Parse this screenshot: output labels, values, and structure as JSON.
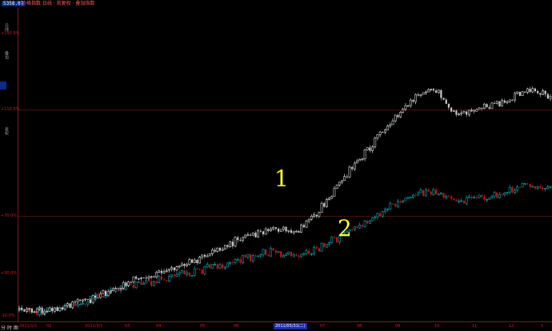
{
  "header": {
    "price_box": "5358.07",
    "info_text": "价格指数 日线 · 前复权 · 叠加指数",
    "colors": {
      "up": "#ffffff",
      "down": "#c8c8c8",
      "series2_up": "#00c8d0",
      "series2_down": "#cc1111"
    }
  },
  "left_axis": {
    "ticks": [
      "+150.0%",
      "+110.0%",
      "+70.0%",
      "+30.0%",
      "-10.0%"
    ],
    "vertical_labels": [
      "日线",
      "叠加",
      "复权"
    ]
  },
  "bottom": {
    "label": "分 时 图",
    "x_labels": [
      "2011/1/1",
      "02",
      "2011/3/1",
      "03",
      "04",
      "05",
      "06",
      "07",
      "08",
      "09",
      "10",
      "11",
      "12",
      "1"
    ],
    "date_box": "2011/05/31(二)"
  },
  "annotations": {
    "line1": "1",
    "line2": "2"
  },
  "chart_data": [
    {
      "type": "candlestick",
      "series": [
        {
          "name": "1",
          "color": "#ffffff",
          "values": [
            -8,
            -9,
            -6,
            -3,
            3,
            8,
            11,
            16,
            21,
            27,
            33,
            37,
            34,
            46,
            63,
            78,
            92,
            107,
            112,
            98,
            102,
            106,
            112,
            108
          ]
        }
      ]
    },
    {
      "type": "candlestick",
      "series": [
        {
          "name": "2",
          "color": "#00c8d0",
          "values": [
            -8,
            -9,
            -6,
            -3,
            2,
            6,
            8,
            11,
            14,
            17,
            21,
            24,
            20,
            26,
            33,
            40,
            48,
            55,
            57,
            51,
            53,
            56,
            60,
            58
          ]
        }
      ]
    }
  ]
}
